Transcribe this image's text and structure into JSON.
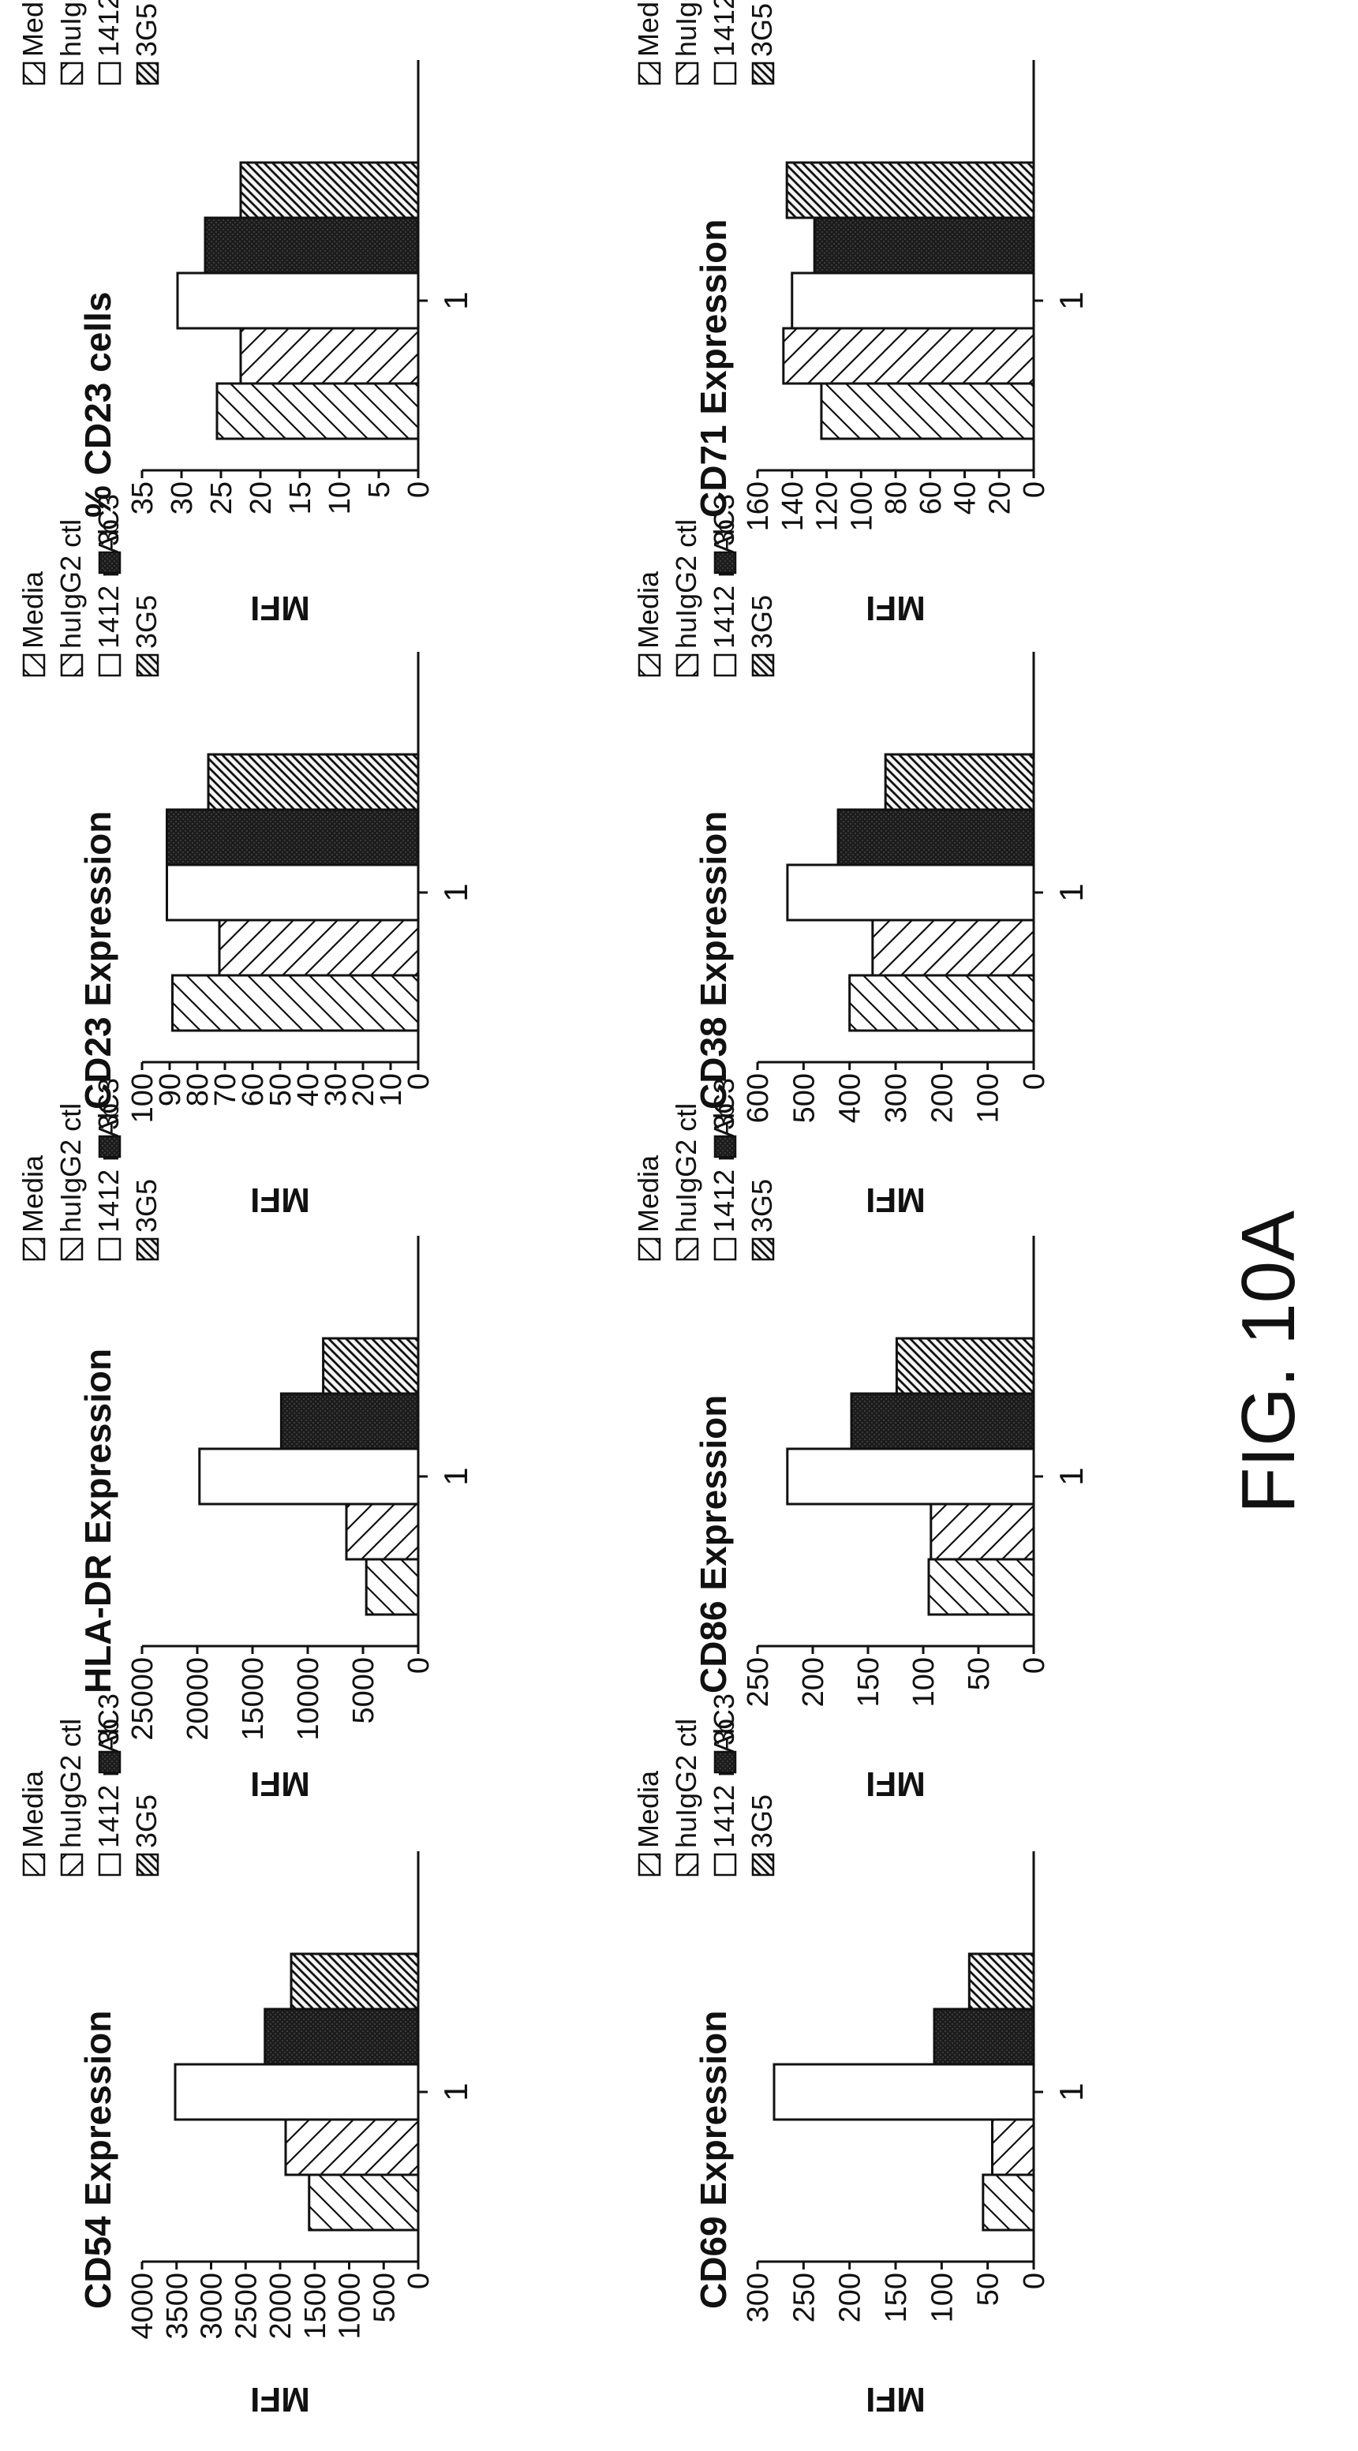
{
  "figure_label": "FIG. 10A",
  "legend_labels": [
    "Media",
    "huIgG2 ctl",
    "1412 mAb",
    "3C3",
    "3G5"
  ],
  "chart_data": [
    {
      "type": "bar",
      "title": "CD54 Expression",
      "ylabel": "MFI",
      "categories": [
        "1"
      ],
      "ylim": [
        0,
        4000
      ],
      "yticks": [
        0,
        500,
        1000,
        1500,
        2000,
        2500,
        3000,
        3500,
        4000
      ],
      "series": [
        {
          "name": "Media",
          "values": [
            1580
          ]
        },
        {
          "name": "huIgG2 ctl",
          "values": [
            1920
          ]
        },
        {
          "name": "1412 mAb",
          "values": [
            3520
          ]
        },
        {
          "name": "3C3",
          "values": [
            2220
          ]
        },
        {
          "name": "3G5",
          "values": [
            1840
          ]
        }
      ]
    },
    {
      "type": "bar",
      "title": "HLA-DR Expression",
      "ylabel": "MFI",
      "categories": [
        "1"
      ],
      "ylim": [
        0,
        25000
      ],
      "yticks": [
        0,
        5000,
        10000,
        15000,
        20000,
        25000
      ],
      "series": [
        {
          "name": "Media",
          "values": [
            4700
          ]
        },
        {
          "name": "huIgG2 ctl",
          "values": [
            6500
          ]
        },
        {
          "name": "1412 mAb",
          "values": [
            19800
          ]
        },
        {
          "name": "3C3",
          "values": [
            12400
          ]
        },
        {
          "name": "3G5",
          "values": [
            8600
          ]
        }
      ]
    },
    {
      "type": "bar",
      "title": "CD23 Expression",
      "ylabel": "MFI",
      "categories": [
        "1"
      ],
      "ylim": [
        0,
        100
      ],
      "yticks": [
        0,
        10,
        20,
        30,
        40,
        50,
        60,
        70,
        80,
        90,
        100
      ],
      "series": [
        {
          "name": "Media",
          "values": [
            89
          ]
        },
        {
          "name": "huIgG2 ctl",
          "values": [
            72
          ]
        },
        {
          "name": "1412 mAb",
          "values": [
            91
          ]
        },
        {
          "name": "3C3",
          "values": [
            91
          ]
        },
        {
          "name": "3G5",
          "values": [
            76
          ]
        }
      ]
    },
    {
      "type": "bar",
      "title": "% CD23 cells",
      "ylabel": "MFI",
      "categories": [
        "1"
      ],
      "ylim": [
        0,
        35
      ],
      "yticks": [
        0,
        5,
        10,
        15,
        20,
        25,
        30,
        35
      ],
      "series": [
        {
          "name": "Media",
          "values": [
            25.5
          ]
        },
        {
          "name": "huIgG2 ctl",
          "values": [
            22.5
          ]
        },
        {
          "name": "1412 mAb",
          "values": [
            30.5
          ]
        },
        {
          "name": "3C3",
          "values": [
            27
          ]
        },
        {
          "name": "3G5",
          "values": [
            22.5
          ]
        }
      ]
    },
    {
      "type": "bar",
      "title": "CD69 Expression",
      "ylabel": "MFI",
      "categories": [
        "1"
      ],
      "ylim": [
        0,
        300
      ],
      "yticks": [
        0,
        50,
        100,
        150,
        200,
        250,
        300
      ],
      "series": [
        {
          "name": "Media",
          "values": [
            55
          ]
        },
        {
          "name": "huIgG2 ctl",
          "values": [
            45
          ]
        },
        {
          "name": "1412 mAb",
          "values": [
            282
          ]
        },
        {
          "name": "3C3",
          "values": [
            108
          ]
        },
        {
          "name": "3G5",
          "values": [
            70
          ]
        }
      ]
    },
    {
      "type": "bar",
      "title": "CD86 Expression",
      "ylabel": "MFI",
      "categories": [
        "1"
      ],
      "ylim": [
        0,
        250
      ],
      "yticks": [
        0,
        50,
        100,
        150,
        200,
        250
      ],
      "series": [
        {
          "name": "Media",
          "values": [
            95
          ]
        },
        {
          "name": "huIgG2 ctl",
          "values": [
            93
          ]
        },
        {
          "name": "1412 mAb",
          "values": [
            223
          ]
        },
        {
          "name": "3C3",
          "values": [
            165
          ]
        },
        {
          "name": "3G5",
          "values": [
            124
          ]
        }
      ]
    },
    {
      "type": "bar",
      "title": "CD38 Expression",
      "ylabel": "MFI",
      "categories": [
        "1"
      ],
      "ylim": [
        0,
        600
      ],
      "yticks": [
        0,
        100,
        200,
        300,
        400,
        500,
        600
      ],
      "series": [
        {
          "name": "Media",
          "values": [
            400
          ]
        },
        {
          "name": "huIgG2 ctl",
          "values": [
            350
          ]
        },
        {
          "name": "1412 mAb",
          "values": [
            535
          ]
        },
        {
          "name": "3C3",
          "values": [
            425
          ]
        },
        {
          "name": "3G5",
          "values": [
            322
          ]
        }
      ]
    },
    {
      "type": "bar",
      "title": "CD71 Expression",
      "ylabel": "MFI",
      "categories": [
        "1"
      ],
      "ylim": [
        0,
        160
      ],
      "yticks": [
        0,
        20,
        40,
        60,
        80,
        100,
        120,
        140,
        160
      ],
      "series": [
        {
          "name": "Media",
          "values": [
            123
          ]
        },
        {
          "name": "huIgG2 ctl",
          "values": [
            145
          ]
        },
        {
          "name": "1412 mAb",
          "values": [
            140
          ]
        },
        {
          "name": "3C3",
          "values": [
            127
          ]
        },
        {
          "name": "3G5",
          "values": [
            143
          ]
        }
      ]
    }
  ]
}
